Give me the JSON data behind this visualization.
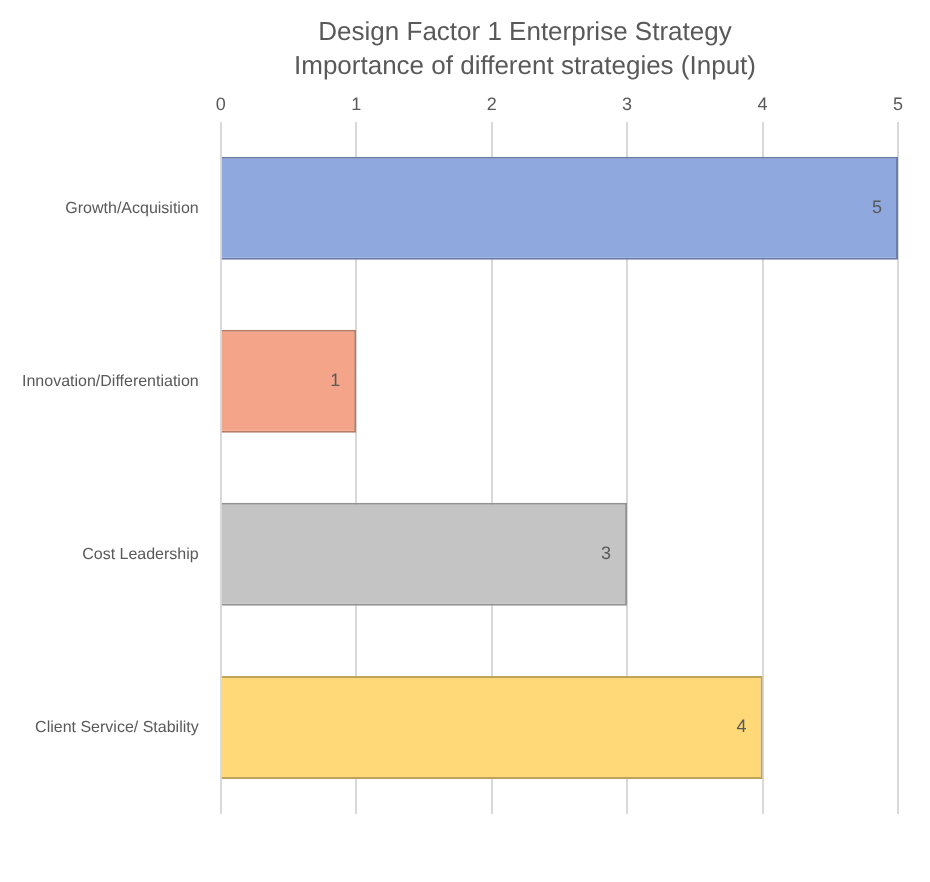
{
  "chart_data": {
    "type": "bar",
    "orientation": "horizontal",
    "title": "Design Factor 1 Enterprise Strategy",
    "subtitle": "Importance of different strategies (Input)",
    "categories": [
      "Growth/Acquisition",
      "Innovation/Differentiation",
      "Cost Leadership",
      "Client Service/ Stability"
    ],
    "values": [
      5,
      1,
      3,
      4
    ],
    "colors": [
      "#8fa8de",
      "#f4a488",
      "#c4c4c4",
      "#ffd978"
    ],
    "xlim": [
      0,
      5
    ],
    "xticks": [
      0,
      1,
      2,
      3,
      4,
      5
    ],
    "grid": "x",
    "legend": false,
    "data_labels": true
  }
}
